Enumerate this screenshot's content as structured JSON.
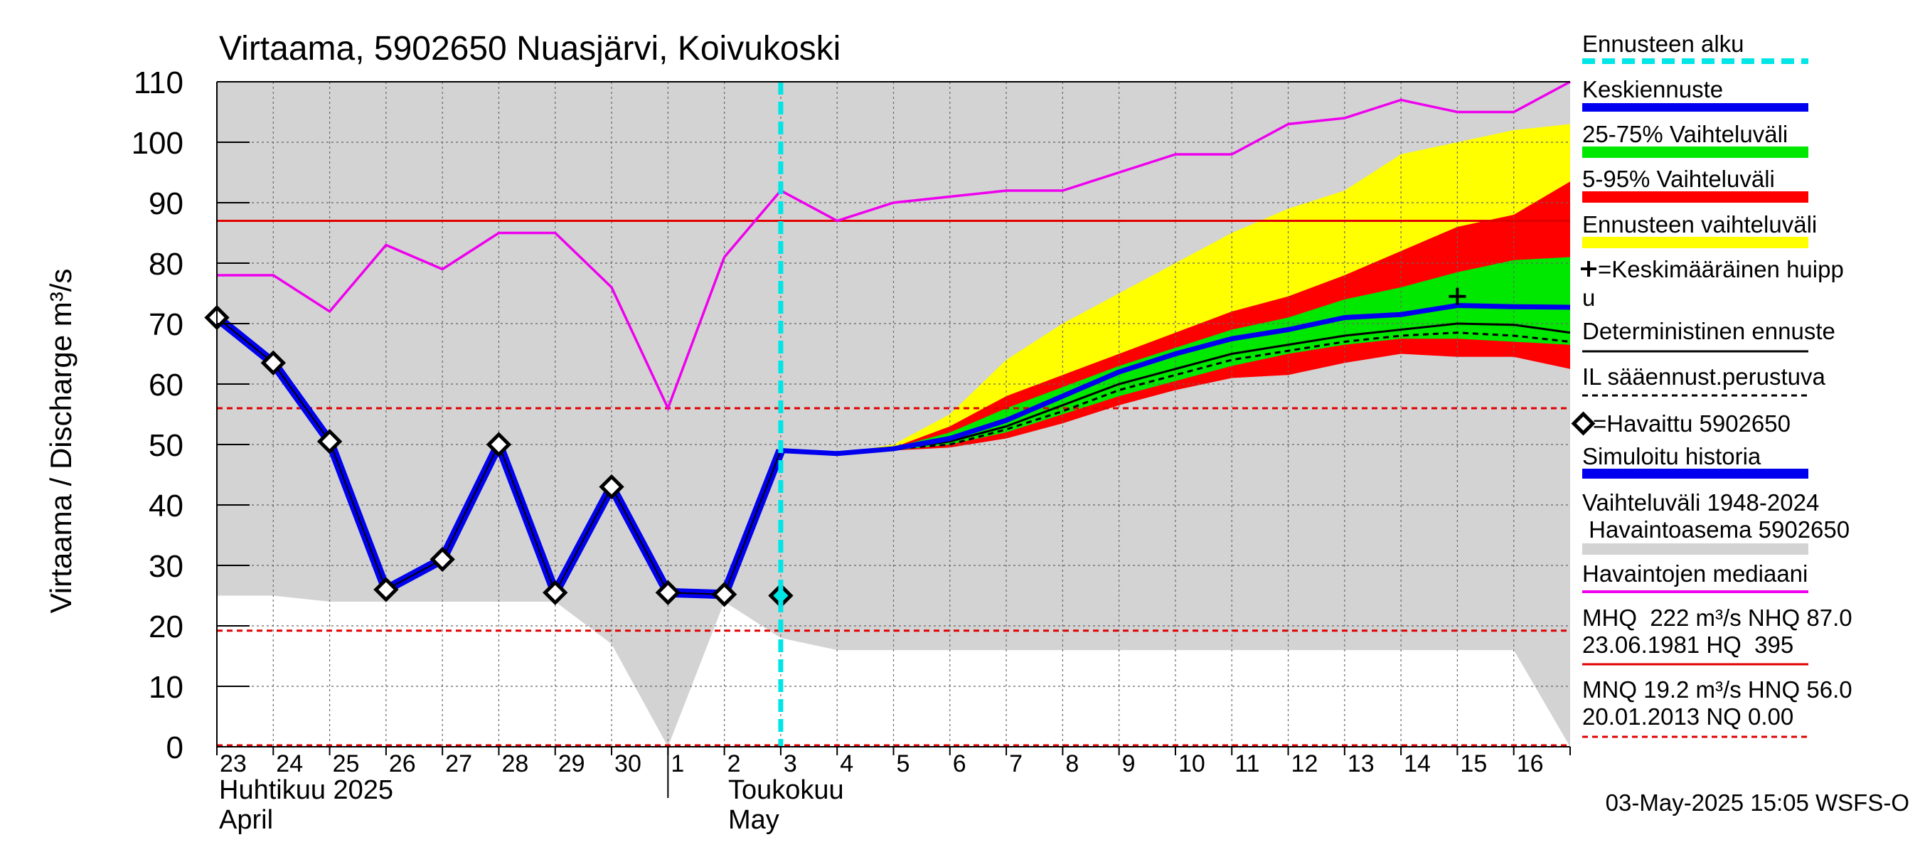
{
  "chart_data": {
    "type": "line",
    "title": "Virtaama, 5902650 Nuasjärvi, Koivukoski",
    "ylabel": "Virtaama / Discharge    m³/s",
    "ylim": [
      0,
      110
    ],
    "yticks": [
      0,
      10,
      20,
      30,
      40,
      50,
      60,
      70,
      80,
      90,
      100,
      110
    ],
    "x_day_range": [
      0,
      24
    ],
    "x_day_labels": [
      "23",
      "24",
      "25",
      "26",
      "27",
      "28",
      "29",
      "30",
      "1",
      "2",
      "3",
      "4",
      "5",
      "6",
      "7",
      "8",
      "9",
      "10",
      "11",
      "12",
      "13",
      "14",
      "15",
      "16"
    ],
    "month_labels": [
      {
        "fi": "Huhtikuu  2025",
        "en": "April",
        "day": 0
      },
      {
        "fi": "Toukokuu",
        "en": "May",
        "day": 9
      }
    ],
    "month_boundary_day": 8,
    "forecast_start_day": 10,
    "grid": true,
    "reference_lines": [
      {
        "name": "NHQ",
        "value": 87.0,
        "color": "#e00000",
        "style": "solid"
      },
      {
        "name": "HNQ",
        "value": 56.0,
        "color": "#e00000",
        "style": "dashed"
      },
      {
        "name": "MNQ",
        "value": 19.2,
        "color": "#e00000",
        "style": "dashed"
      }
    ],
    "history_envelope": {
      "x": [
        0,
        1,
        2,
        3,
        4,
        5,
        6,
        7,
        8,
        9,
        10,
        11,
        12,
        13,
        14,
        15,
        16,
        17,
        18,
        19,
        20,
        21,
        22,
        23,
        24
      ],
      "low": [
        25,
        25,
        24,
        24,
        24,
        24,
        24,
        17,
        0,
        24,
        18,
        16,
        16,
        16,
        16,
        16,
        16,
        16,
        16,
        16,
        16,
        16,
        16,
        16,
        0
      ],
      "high": [
        110,
        110,
        110,
        110,
        110,
        110,
        110,
        110,
        110,
        110,
        110,
        110,
        110,
        110,
        110,
        110,
        110,
        110,
        110,
        110,
        110,
        110,
        110,
        110,
        110
      ]
    },
    "forecast_x": [
      11,
      12,
      13,
      14,
      15,
      16,
      17,
      18,
      19,
      20,
      21,
      22,
      23,
      24
    ],
    "forecast_range": {
      "low": [
        48.5,
        49.5,
        50.5,
        52,
        55,
        58,
        61,
        63.5,
        65.5,
        67.5,
        69,
        69.5,
        69.5,
        69
      ],
      "high": [
        48.5,
        50,
        55,
        64,
        70,
        75,
        80,
        85,
        89,
        92,
        98,
        100,
        102,
        103
      ]
    },
    "band_5_95": {
      "low": [
        48.5,
        49,
        49.5,
        51,
        53.5,
        56.5,
        59,
        61,
        61.5,
        63.5,
        65,
        64.5,
        64.5,
        62.5
      ],
      "high": [
        48.5,
        49.5,
        53,
        58,
        61.5,
        65,
        68.5,
        72,
        74.5,
        78,
        82,
        86,
        88,
        93.5
      ]
    },
    "band_25_75": {
      "low": [
        48.5,
        49,
        50,
        52,
        55,
        58,
        60.5,
        63,
        65,
        66.5,
        67.5,
        67.5,
        67,
        66.5
      ],
      "high": [
        48.5,
        49.5,
        52,
        56,
        59.5,
        63,
        66,
        69,
        71,
        74,
        76,
        78.5,
        80.5,
        81
      ]
    },
    "series": [
      {
        "name": "Havaittu 5902650",
        "x": [
          0,
          1,
          2,
          3,
          4,
          5,
          6,
          7,
          8,
          9,
          10
        ],
        "values": [
          71,
          63.5,
          50.5,
          26,
          31,
          50,
          25.5,
          43,
          25.5,
          25.2,
          25
        ],
        "color": "#000000",
        "markers": "diamond"
      },
      {
        "name": "Simuloitu historia",
        "x": [
          0,
          1,
          2,
          3,
          4,
          5,
          6,
          7,
          8,
          9,
          10
        ],
        "values": [
          71,
          63.5,
          50.5,
          26,
          31,
          50,
          25.5,
          43,
          25.5,
          25.2,
          49
        ],
        "color": "#0000ee"
      },
      {
        "name": "Havaintojen mediaani",
        "x": [
          0,
          1,
          2,
          3,
          4,
          5,
          6,
          7,
          8,
          9,
          10,
          11,
          12,
          13,
          14,
          15,
          16,
          17,
          18,
          19,
          20,
          21,
          22,
          23,
          24
        ],
        "values": [
          78,
          78,
          72,
          83,
          79,
          85,
          85,
          76,
          56,
          81,
          92,
          87,
          90,
          91,
          92,
          92,
          95,
          98,
          98,
          103,
          104,
          107,
          105,
          105,
          110
        ],
        "color": "#ee00ee"
      },
      {
        "name": "Keskiennuste",
        "x": [
          10,
          11,
          12,
          13,
          14,
          15,
          16,
          17,
          18,
          19,
          20,
          21,
          22,
          23,
          24
        ],
        "values": [
          49,
          48.5,
          49.3,
          51,
          54,
          58,
          62,
          65,
          67.5,
          69,
          71,
          71.5,
          73,
          72.8,
          72.7
        ],
        "color": "#0000ee"
      },
      {
        "name": "Deterministinen ennuste",
        "x": [
          10,
          11,
          12,
          13,
          14,
          15,
          16,
          17,
          18,
          19,
          20,
          21,
          22,
          23,
          24
        ],
        "values": [
          49,
          48.5,
          49.3,
          50.5,
          53,
          56.5,
          60,
          62.5,
          65,
          66.5,
          68,
          69,
          70,
          69.8,
          68.5
        ],
        "color": "#000000"
      },
      {
        "name": "IL sääennust.perustuva",
        "x": [
          10,
          11,
          12,
          13,
          14,
          15,
          16,
          17,
          18,
          19,
          20,
          21,
          22,
          23,
          24
        ],
        "values": [
          49,
          48.5,
          49.3,
          50,
          52.5,
          55.5,
          59,
          61.5,
          64,
          65.5,
          67,
          68,
          68.5,
          68,
          67
        ],
        "color": "#000000",
        "style": "dashed"
      }
    ],
    "mean_peak": {
      "x": 22,
      "value": 74.5
    },
    "legend_placement": "right",
    "legend": {
      "forecast_start": "Ennusteen alku",
      "mean_forecast": "Keskiennuste",
      "band_25_75": "25-75% Vaihteluväli",
      "band_5_95": "5-95% Vaihteluväli",
      "forecast_range": "Ennusteen vaihteluväli",
      "mean_peak_line1": "=Keskimääräinen huipp",
      "mean_peak_line2": "u",
      "deterministic": "Deterministinen ennuste",
      "il_forecast": "IL sääennust.perustuva",
      "observed": "=Havaittu 5902650",
      "simulated": "Simuloitu historia",
      "history_range_line1": "Vaihteluväli 1948-2024",
      "history_range_line2": " Havaintoasema 5902650",
      "median": "Havaintojen mediaani",
      "stats1_line1": "MHQ  222 m³/s NHQ 87.0",
      "stats1_line2": "23.06.1981 HQ  395",
      "stats2_line1": "MNQ 19.2 m³/s HNQ 56.0",
      "stats2_line2": "20.01.2013 NQ 0.00"
    },
    "footer": "03-May-2025 15:05 WSFS-O"
  },
  "colors": {
    "history_band": "#d3d3d3",
    "forecast_range": "#ffff00",
    "band_5_95": "#ff0000",
    "band_25_75": "#00e800",
    "mean_forecast": "#0000ee",
    "observed_line": "#0000ee",
    "median": "#ee00ee",
    "forecast_start": "#00e5e5",
    "reference": "#e00000"
  }
}
